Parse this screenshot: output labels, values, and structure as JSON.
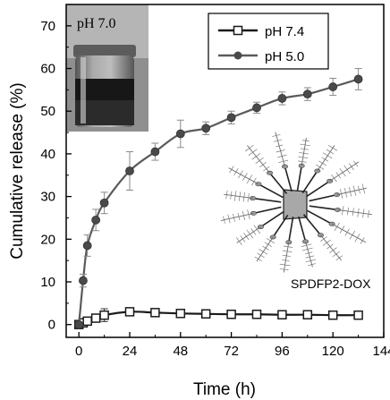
{
  "chart_data": {
    "type": "line",
    "xlabel": "Time (h)",
    "ylabel": "Cumulative release (%)",
    "xlim": [
      -6,
      144
    ],
    "ylim": [
      -3,
      75
    ],
    "xticks": [
      0,
      24,
      48,
      72,
      96,
      120,
      144
    ],
    "yticks": [
      0,
      10,
      20,
      30,
      40,
      50,
      60,
      70
    ],
    "grid": false,
    "legend_position": "top-right",
    "series": [
      {
        "name": "pH 7.4",
        "marker": "open-square",
        "color": "#1a1a1a",
        "x": [
          0,
          2,
          4,
          8,
          12,
          24,
          36,
          48,
          60,
          72,
          84,
          96,
          108,
          120,
          132
        ],
        "y": [
          0,
          0.4,
          0.8,
          1.5,
          2.2,
          3.0,
          2.8,
          2.6,
          2.5,
          2.4,
          2.4,
          2.3,
          2.3,
          2.2,
          2.2
        ],
        "err": [
          0,
          0.2,
          0.4,
          0.7,
          1.5,
          0.9,
          0.5,
          0.6,
          0.7,
          0.7,
          0.6,
          0.7,
          0.7,
          0.8,
          0.8
        ]
      },
      {
        "name": "pH 5.0",
        "marker": "filled-circle",
        "color": "#5a5a5a",
        "x": [
          0,
          2,
          4,
          8,
          12,
          24,
          36,
          48,
          60,
          72,
          84,
          96,
          108,
          120,
          132
        ],
        "y": [
          0,
          10.3,
          18.5,
          24.5,
          28.5,
          36,
          40.5,
          44.7,
          46,
          48.5,
          50.8,
          53,
          54,
          55.7,
          57.5
        ],
        "err": [
          0,
          1.5,
          2.5,
          2.5,
          2.5,
          4.5,
          2.0,
          3.2,
          1.5,
          1.5,
          1.3,
          1.5,
          1.5,
          2.0,
          2.5
        ]
      }
    ],
    "annotations": {
      "inset_label": "pH 7.0",
      "structure_label": "SPDFP2-DOX"
    }
  }
}
